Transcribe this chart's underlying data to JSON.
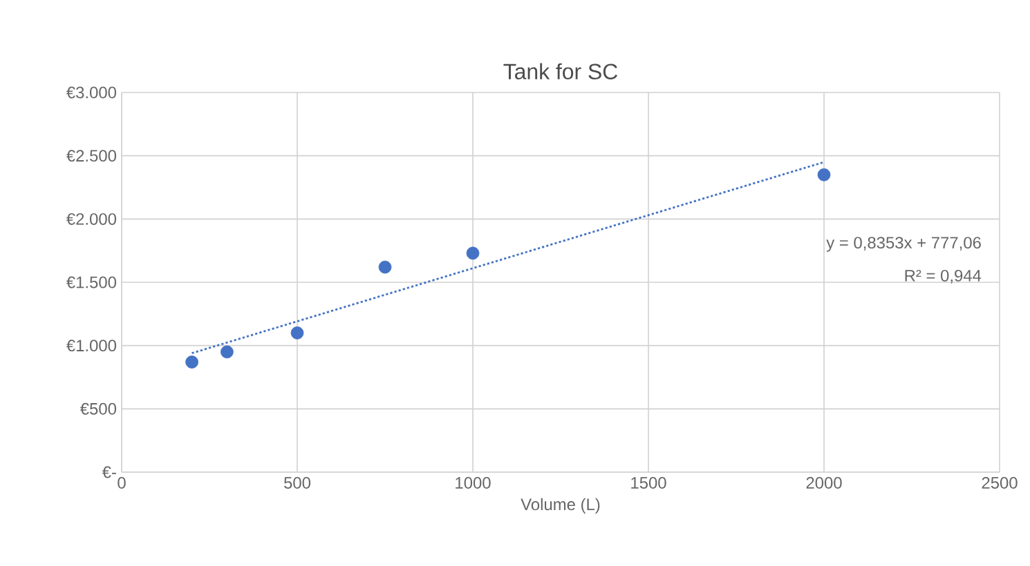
{
  "chart_data": {
    "type": "scatter",
    "title": "Tank for SC",
    "xlabel": "Volume (L)",
    "xlim": [
      0,
      2500
    ],
    "xticks": [
      0,
      500,
      1000,
      1500,
      2000,
      2500
    ],
    "ylim": [
      0,
      3000
    ],
    "yticks": [
      {
        "value": 0,
        "label": "€-"
      },
      {
        "value": 500,
        "label": "€500"
      },
      {
        "value": 1000,
        "label": "€1.000"
      },
      {
        "value": 1500,
        "label": "€1.500"
      },
      {
        "value": 2000,
        "label": "€2.000"
      },
      {
        "value": 2500,
        "label": "€2.500"
      },
      {
        "value": 3000,
        "label": "€3.000"
      }
    ],
    "grid": true,
    "marker": "circle",
    "series": [
      {
        "color": "#4472c4",
        "x": [
          200,
          300,
          500,
          750,
          1000,
          2000
        ],
        "values": [
          870,
          950,
          1100,
          1620,
          1730,
          2350
        ]
      },
      {
        "type": "line",
        "line_style": "dotted",
        "marker": "none",
        "color": "#4472c4",
        "x": [
          200,
          2000
        ],
        "values": [
          940,
          2450
        ]
      }
    ],
    "annotations": [
      "y = 0,8353x + 777,06",
      "R² = 0,944"
    ]
  }
}
